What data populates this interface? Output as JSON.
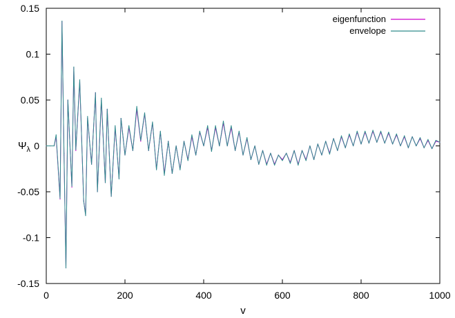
{
  "chart_data": {
    "type": "line",
    "title": "",
    "xlabel": "v",
    "ylabel_base": "Ψ",
    "ylabel_sub": "λ",
    "xlim": [
      0,
      1000
    ],
    "ylim": [
      -0.15,
      0.15
    ],
    "x_ticks": [
      0,
      200,
      400,
      600,
      800,
      1000
    ],
    "x_tick_labels": [
      "0",
      "200",
      "400",
      "600",
      "800",
      "1000"
    ],
    "y_ticks": [
      -0.15,
      -0.1,
      -0.05,
      0,
      0.05,
      0.1,
      0.15
    ],
    "y_tick_labels": [
      "-0.15",
      "-0.1",
      "-0.05",
      "0",
      "0.05",
      "0.1",
      "0.15"
    ],
    "grid": false,
    "legend_position": "top-right",
    "series": [
      {
        "name": "eigenfunction",
        "color": "#cc00cc",
        "x": [
          0,
          10,
          20,
          25,
          35,
          40,
          45,
          50,
          55,
          65,
          70,
          75,
          85,
          95,
          100,
          105,
          115,
          125,
          130,
          140,
          150,
          155,
          165,
          175,
          185,
          190,
          200,
          210,
          220,
          230,
          240,
          250,
          260,
          270,
          280,
          290,
          300,
          310,
          320,
          330,
          340,
          350,
          360,
          370,
          380,
          390,
          400,
          410,
          420,
          430,
          440,
          450,
          460,
          470,
          480,
          490,
          500,
          510,
          520,
          530,
          540,
          550,
          560,
          570,
          580,
          590,
          600,
          610,
          620,
          630,
          640,
          650,
          660,
          670,
          680,
          690,
          700,
          710,
          720,
          730,
          740,
          750,
          760,
          770,
          780,
          790,
          800,
          810,
          820,
          830,
          840,
          850,
          860,
          870,
          880,
          890,
          900,
          910,
          920,
          930,
          940,
          950,
          960,
          970,
          980,
          990,
          1000
        ],
        "y": [
          0,
          0,
          0,
          0.01,
          -0.058,
          0.135,
          -0.01,
          -0.133,
          0.05,
          -0.045,
          0.085,
          -0.005,
          0.07,
          -0.06,
          -0.075,
          0.03,
          -0.02,
          0.058,
          -0.05,
          0.05,
          -0.04,
          0.04,
          -0.055,
          0.02,
          -0.035,
          0.03,
          -0.01,
          0.02,
          -0.005,
          0.04,
          0.005,
          0.035,
          -0.005,
          0.025,
          -0.025,
          0.015,
          -0.03,
          0.005,
          -0.03,
          0.0,
          -0.025,
          0.005,
          -0.015,
          0.01,
          -0.01,
          0.015,
          0.0,
          0.02,
          -0.005,
          0.02,
          0.0,
          0.025,
          0.0,
          0.02,
          -0.005,
          0.015,
          -0.01,
          0.008,
          -0.015,
          0.0,
          -0.02,
          -0.005,
          -0.02,
          -0.008,
          -0.02,
          -0.01,
          -0.015,
          -0.008,
          -0.018,
          -0.005,
          -0.02,
          -0.005,
          -0.015,
          0.0,
          -0.015,
          0.002,
          -0.01,
          0.005,
          -0.008,
          0.008,
          -0.005,
          0.01,
          -0.002,
          0.012,
          0.0,
          0.015,
          0.002,
          0.015,
          0.003,
          0.016,
          0.004,
          0.015,
          0.003,
          0.014,
          0.002,
          0.012,
          0.0,
          0.01,
          -0.002,
          0.01,
          0.0,
          0.008,
          -0.002,
          0.006,
          -0.003,
          0.005,
          0.004
        ]
      },
      {
        "name": "envelope",
        "color": "#2e8b8b",
        "x": [
          0,
          10,
          20,
          25,
          35,
          40,
          45,
          50,
          55,
          65,
          70,
          75,
          85,
          95,
          100,
          105,
          115,
          125,
          130,
          140,
          150,
          155,
          165,
          175,
          185,
          190,
          200,
          210,
          220,
          230,
          240,
          250,
          260,
          270,
          280,
          290,
          300,
          310,
          320,
          330,
          340,
          350,
          360,
          370,
          380,
          390,
          400,
          410,
          420,
          430,
          440,
          450,
          460,
          470,
          480,
          490,
          500,
          510,
          520,
          530,
          540,
          550,
          560,
          570,
          580,
          590,
          600,
          610,
          620,
          630,
          640,
          650,
          660,
          670,
          680,
          690,
          700,
          710,
          720,
          730,
          740,
          750,
          760,
          770,
          780,
          790,
          800,
          810,
          820,
          830,
          840,
          850,
          860,
          870,
          880,
          890,
          900,
          910,
          920,
          930,
          940,
          950,
          960,
          970,
          980,
          990,
          1000
        ],
        "y": [
          0,
          0,
          0,
          0.012,
          -0.057,
          0.136,
          -0.008,
          -0.133,
          0.05,
          -0.044,
          0.086,
          -0.004,
          0.072,
          -0.06,
          -0.076,
          0.032,
          -0.02,
          0.058,
          -0.05,
          0.052,
          -0.04,
          0.04,
          -0.055,
          0.022,
          -0.036,
          0.03,
          -0.01,
          0.022,
          -0.005,
          0.043,
          0.006,
          0.036,
          -0.005,
          0.026,
          -0.026,
          0.016,
          -0.032,
          0.005,
          -0.03,
          0.0,
          -0.026,
          0.005,
          -0.016,
          0.012,
          -0.01,
          0.016,
          0.0,
          0.022,
          -0.006,
          0.022,
          0.0,
          0.027,
          0.0,
          0.022,
          -0.005,
          0.016,
          -0.01,
          0.009,
          -0.015,
          0.0,
          -0.02,
          -0.005,
          -0.021,
          -0.008,
          -0.021,
          -0.01,
          -0.016,
          -0.008,
          -0.019,
          -0.005,
          -0.021,
          -0.005,
          -0.016,
          0.0,
          -0.015,
          0.002,
          -0.01,
          0.005,
          -0.009,
          0.008,
          -0.005,
          0.011,
          -0.002,
          0.013,
          0.0,
          0.016,
          0.002,
          0.016,
          0.003,
          0.017,
          0.004,
          0.016,
          0.003,
          0.015,
          0.002,
          0.013,
          0.0,
          0.011,
          -0.002,
          0.01,
          0.0,
          0.009,
          -0.002,
          0.007,
          -0.003,
          0.006,
          0.004
        ]
      }
    ]
  }
}
